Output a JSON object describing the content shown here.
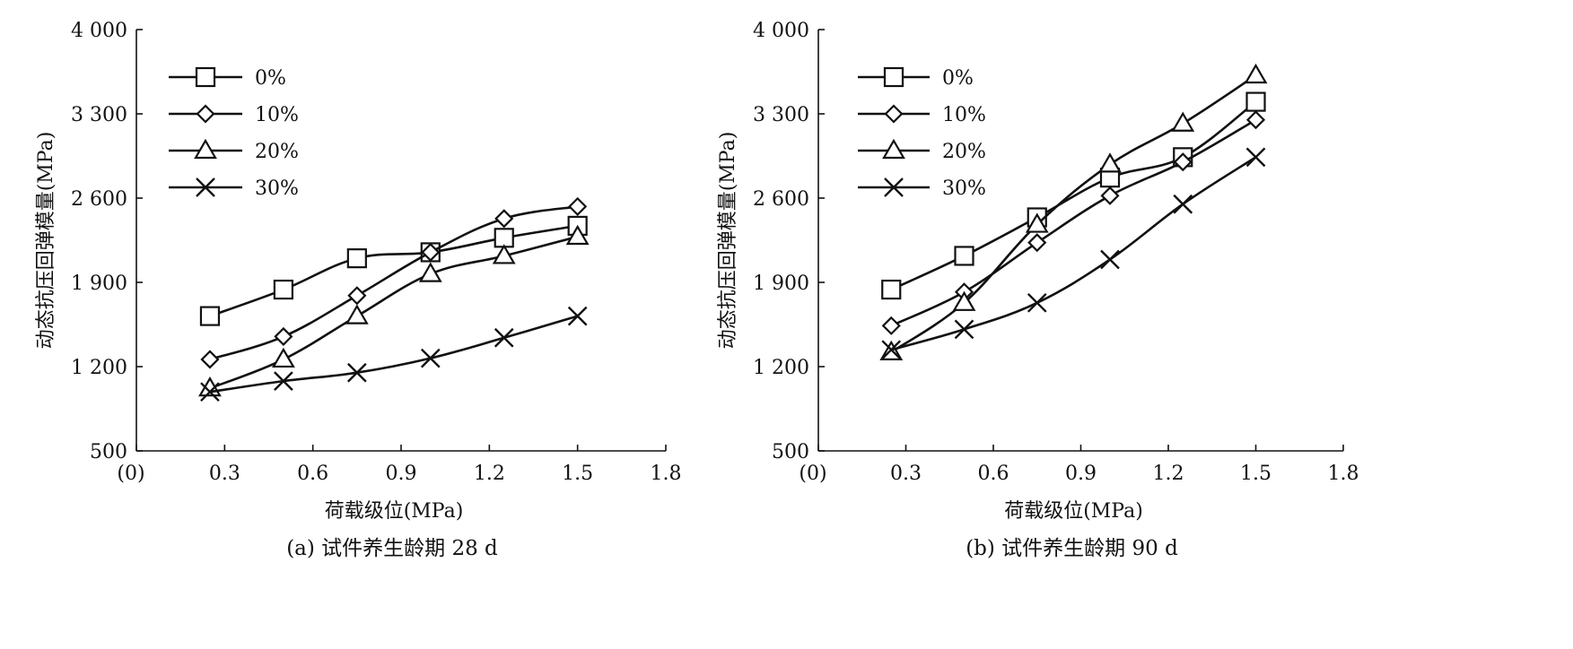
{
  "chart_data": [
    {
      "type": "line",
      "caption": "(a) 试件养生龄期 28 d",
      "xlabel": "荷载级位(MPa)",
      "ylabel": "动态抗压回弹模量(MPa)",
      "xlim": [
        0,
        1.8
      ],
      "ylim": [
        500,
        4000
      ],
      "xticks": [
        "(0)",
        "0.3",
        "0.6",
        "0.9",
        "1.2",
        "1.5",
        "1.8"
      ],
      "yticks": [
        "500",
        "1 200",
        "1 900",
        "2 600",
        "3 300",
        "4 000"
      ],
      "x": [
        0.25,
        0.5,
        0.75,
        1.0,
        1.25,
        1.5
      ],
      "legend_position": "top-left",
      "series": [
        {
          "name": "0%",
          "marker": "square",
          "values": [
            1620,
            1840,
            2100,
            2150,
            2270,
            2370
          ]
        },
        {
          "name": "10%",
          "marker": "diamond",
          "values": [
            1260,
            1450,
            1790,
            2150,
            2430,
            2530
          ]
        },
        {
          "name": "20%",
          "marker": "triangle",
          "values": [
            1020,
            1260,
            1620,
            1970,
            2120,
            2280
          ]
        },
        {
          "name": "30%",
          "marker": "cross",
          "values": [
            990,
            1080,
            1150,
            1270,
            1440,
            1620
          ]
        }
      ]
    },
    {
      "type": "line",
      "caption": "(b) 试件养生龄期 90 d",
      "xlabel": "荷载级位(MPa)",
      "ylabel": "动态抗压回弹模量(MPa)",
      "xlim": [
        0,
        1.8
      ],
      "ylim": [
        500,
        4000
      ],
      "xticks": [
        "(0)",
        "0.3",
        "0.6",
        "0.9",
        "1.2",
        "1.5",
        "1.8"
      ],
      "yticks": [
        "500",
        "1 200",
        "1 900",
        "2 600",
        "3 300",
        "4 000"
      ],
      "x": [
        0.25,
        0.5,
        0.75,
        1.0,
        1.25,
        1.5
      ],
      "legend_position": "top-left",
      "series": [
        {
          "name": "0%",
          "marker": "square",
          "values": [
            1840,
            2120,
            2440,
            2770,
            2940,
            3400
          ]
        },
        {
          "name": "10%",
          "marker": "diamond",
          "values": [
            1540,
            1820,
            2230,
            2620,
            2900,
            3250
          ]
        },
        {
          "name": "20%",
          "marker": "triangle",
          "values": [
            1320,
            1730,
            2380,
            2880,
            3220,
            3620
          ]
        },
        {
          "name": "30%",
          "marker": "cross",
          "values": [
            1340,
            1510,
            1730,
            2090,
            2550,
            2940
          ]
        }
      ]
    }
  ]
}
